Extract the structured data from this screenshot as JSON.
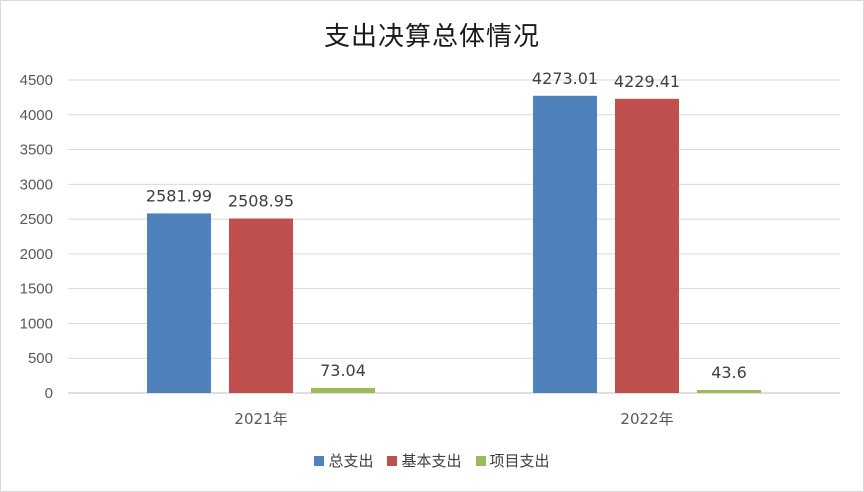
{
  "chart_data": {
    "type": "bar",
    "title": "支出决算总体情况",
    "categories": [
      "2021年",
      "2022年"
    ],
    "series": [
      {
        "name": "总支出",
        "values": [
          2581.99,
          4273.01
        ],
        "labels": [
          "2581.99",
          "4273.01"
        ],
        "color": "#4f81bd"
      },
      {
        "name": "基本支出",
        "values": [
          2508.95,
          4229.41
        ],
        "labels": [
          "2508.95",
          "4229.41"
        ],
        "color": "#c0504d"
      },
      {
        "name": "项目支出",
        "values": [
          73.04,
          43.6
        ],
        "labels": [
          "73.04",
          "43.6"
        ],
        "color": "#9bbb59"
      }
    ],
    "ylim": [
      0,
      4500
    ],
    "yticks": [
      "0",
      "500",
      "1000",
      "1500",
      "2000",
      "2500",
      "3000",
      "3500",
      "4000",
      "4500"
    ],
    "grid": true,
    "legend_position": "bottom"
  }
}
